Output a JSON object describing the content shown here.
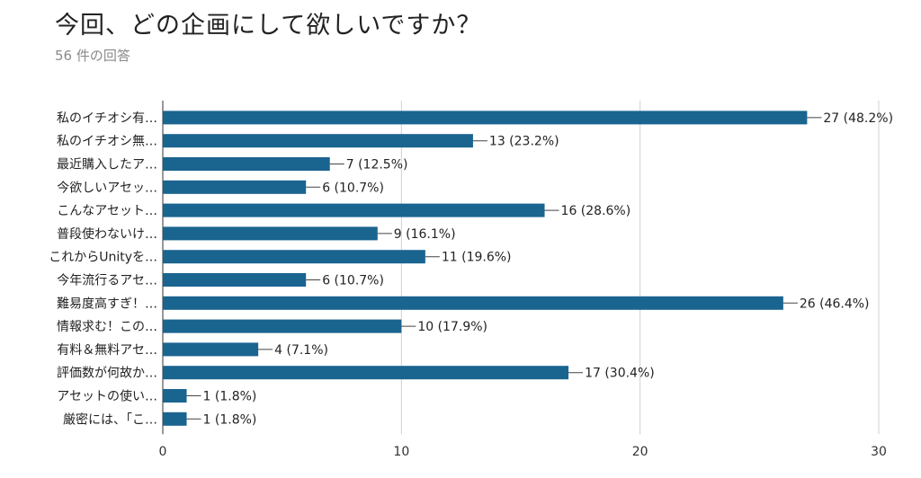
{
  "title": "今回、どの企画にして欲しいですか？",
  "subtitle": "56 件の回答",
  "chart_data": {
    "type": "bar",
    "orientation": "horizontal",
    "categories": [
      "私のイチオシ有…",
      "私のイチオシ無…",
      "最近購入したア…",
      "今欲しいアセッ…",
      "こんなアセット…",
      "普段使わないけ…",
      "これからUnityを…",
      "今年流行るアセ…",
      "難易度高すぎ！…",
      "情報求む！この…",
      "有料＆無料アセ…",
      "評価数が何故か…",
      "アセットの使い…",
      "厳密には、「こ…"
    ],
    "values": [
      27,
      13,
      7,
      6,
      16,
      9,
      11,
      6,
      26,
      10,
      4,
      17,
      1,
      1
    ],
    "value_labels": [
      "27 (48.2%)",
      "13 (23.2%)",
      "7 (12.5%)",
      "6 (10.7%)",
      "16 (28.6%)",
      "9 (16.1%)",
      "11 (19.6%)",
      "6 (10.7%)",
      "26 (46.4%)",
      "10 (17.9%)",
      "4 (7.1%)",
      "17 (30.4%)",
      "1 (1.8%)",
      "1 (1.8%)"
    ],
    "xlim": [
      0,
      30
    ],
    "xticks": [
      0,
      10,
      20,
      30
    ],
    "grid": true,
    "bar_color": "#1a6490"
  }
}
